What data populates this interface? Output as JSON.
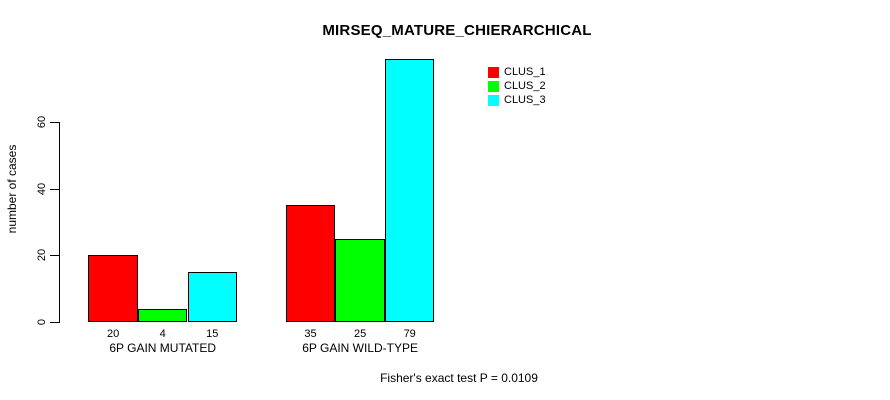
{
  "chart_data": {
    "type": "bar",
    "title": "MIRSEQ_MATURE_CHIERARCHICAL",
    "ylabel": "number of cases",
    "xlabel": "",
    "ylim": [
      0,
      79
    ],
    "yticks": [
      0,
      20,
      40,
      60
    ],
    "grid": false,
    "categories": [
      "6P GAIN MUTATED",
      "6P GAIN WILD-TYPE"
    ],
    "series": [
      {
        "name": "CLUS_1",
        "color": "#ff0000",
        "values": [
          20,
          35
        ]
      },
      {
        "name": "CLUS_2",
        "color": "#00ff00",
        "values": [
          4,
          25
        ]
      },
      {
        "name": "CLUS_3",
        "color": "#00ffff",
        "values": [
          15,
          79
        ]
      }
    ],
    "bar_value_labels": [
      [
        "20",
        "4",
        "15"
      ],
      [
        "35",
        "25",
        "79"
      ]
    ],
    "legend_position": "top-right",
    "legend_entries": [
      "CLUS_1",
      "CLUS_2",
      "CLUS_3"
    ],
    "annotation": "Fisher's exact test P = 0.0109"
  }
}
